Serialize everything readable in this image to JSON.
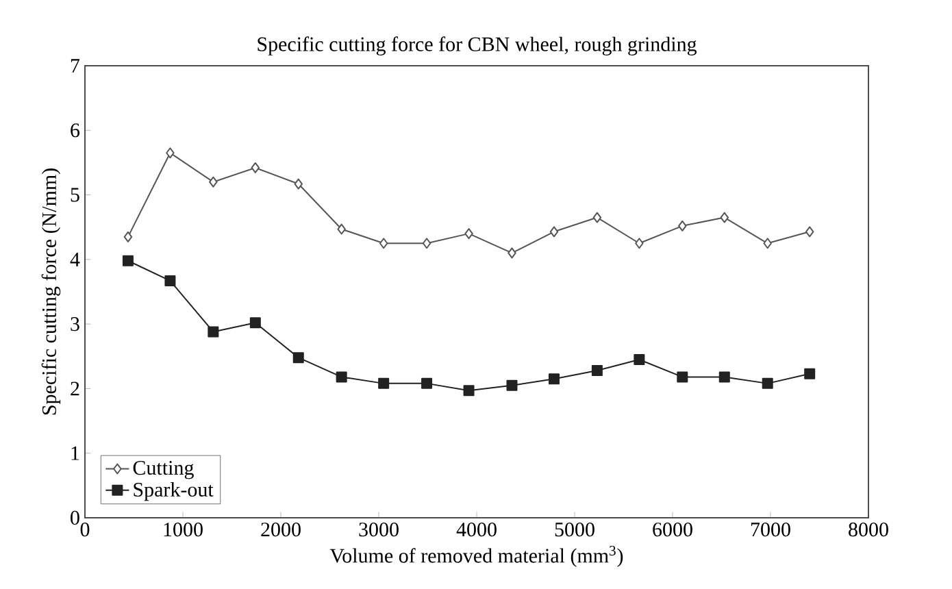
{
  "chart_data": {
    "type": "line",
    "title": "Specific cutting force for CBN wheel, rough grinding",
    "xlabel": "Volume of removed material (mm$^{3}$)",
    "ylabel": "Specific cutting force (N/mm)",
    "x": [
      440,
      870,
      1310,
      1740,
      2180,
      2620,
      3050,
      3490,
      3920,
      4360,
      4790,
      5230,
      5660,
      6100,
      6530,
      6970,
      7400
    ],
    "series": [
      {
        "name": "Cutting",
        "color": "#555555",
        "marker": "diamond",
        "values": [
          4.35,
          5.65,
          5.2,
          5.42,
          5.17,
          4.47,
          4.25,
          4.25,
          4.4,
          4.1,
          4.43,
          4.65,
          4.25,
          4.52,
          4.65,
          4.25,
          4.43
        ]
      },
      {
        "name": "Spark-out",
        "color": "#222222",
        "marker": "square",
        "values": [
          3.98,
          3.67,
          2.88,
          3.02,
          2.48,
          2.18,
          2.08,
          2.08,
          1.97,
          2.05,
          2.15,
          2.28,
          2.45,
          2.18,
          2.18,
          2.08,
          2.23
        ]
      }
    ],
    "xlim": [
      0,
      8000
    ],
    "xticks": [
      0,
      1000,
      2000,
      3000,
      4000,
      5000,
      6000,
      7000,
      8000
    ],
    "ylim": [
      0,
      7
    ],
    "yticks": [
      0,
      1,
      2,
      3,
      4,
      5,
      6,
      7
    ],
    "grid": false,
    "legend": "bottom left",
    "line_style": "solid"
  }
}
